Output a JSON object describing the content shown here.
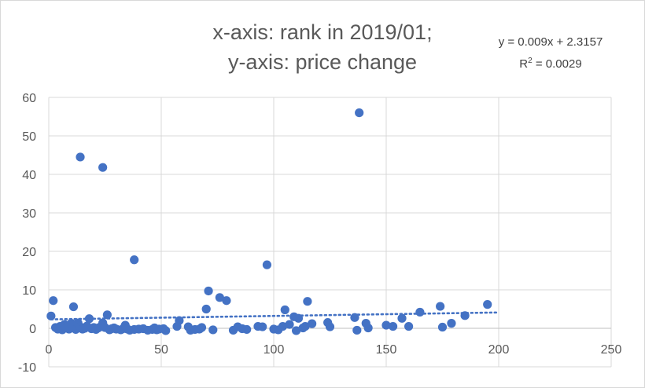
{
  "chart_data": {
    "type": "scatter",
    "title_lines": [
      "x-axis: rank in 2019/01;",
      "y-axis: price change"
    ],
    "xlim": [
      0,
      250
    ],
    "ylim": [
      -10,
      60
    ],
    "x_ticks": [
      0,
      50,
      100,
      150,
      200,
      250
    ],
    "y_ticks": [
      -10,
      0,
      10,
      20,
      30,
      40,
      50,
      60
    ],
    "grid": true,
    "marker_color": "#4472c4",
    "trendline": {
      "type": "linear",
      "slope": 0.009,
      "intercept": 2.3157,
      "x_range": [
        1,
        200
      ],
      "equation_label": "y = 0.009x + 2.3157",
      "r2_label_prefix": "R",
      "r2_label_suffix": " = 0.0029",
      "color": "#4472c4",
      "style": "dotted"
    },
    "points": [
      [
        1,
        3.2
      ],
      [
        2,
        7.2
      ],
      [
        3,
        0.2
      ],
      [
        4,
        -0.2
      ],
      [
        5,
        0.5
      ],
      [
        6,
        -0.4
      ],
      [
        7,
        1.0
      ],
      [
        8,
        0.3
      ],
      [
        9,
        -0.2
      ],
      [
        10,
        1.3
      ],
      [
        11,
        0.1
      ],
      [
        11,
        5.6
      ],
      [
        12,
        -0.3
      ],
      [
        13,
        1.4
      ],
      [
        14,
        0.4
      ],
      [
        14,
        44.5
      ],
      [
        15,
        -0.2
      ],
      [
        16,
        0.0
      ],
      [
        17,
        0.6
      ],
      [
        18,
        2.5
      ],
      [
        19,
        -0.1
      ],
      [
        20,
        0.2
      ],
      [
        21,
        -0.3
      ],
      [
        22,
        0.1
      ],
      [
        23,
        0.4
      ],
      [
        24,
        1.4
      ],
      [
        24,
        41.8
      ],
      [
        25,
        0.2
      ],
      [
        26,
        3.5
      ],
      [
        27,
        -0.4
      ],
      [
        28,
        -0.1
      ],
      [
        29,
        0.1
      ],
      [
        30,
        -0.2
      ],
      [
        32,
        -0.4
      ],
      [
        33,
        -0.1
      ],
      [
        34,
        0.8
      ],
      [
        35,
        -0.2
      ],
      [
        36,
        -0.5
      ],
      [
        38,
        17.8
      ],
      [
        38,
        -0.3
      ],
      [
        40,
        -0.2
      ],
      [
        42,
        -0.1
      ],
      [
        44,
        -0.5
      ],
      [
        46,
        -0.3
      ],
      [
        47,
        0.1
      ],
      [
        48,
        -0.4
      ],
      [
        49,
        -0.2
      ],
      [
        51,
        -0.1
      ],
      [
        52,
        -0.6
      ],
      [
        57,
        0.5
      ],
      [
        58,
        2.0
      ],
      [
        62,
        0.4
      ],
      [
        63,
        -0.5
      ],
      [
        65,
        -0.3
      ],
      [
        67,
        -0.2
      ],
      [
        68,
        0.2
      ],
      [
        70,
        5.0
      ],
      [
        71,
        9.7
      ],
      [
        73,
        -0.4
      ],
      [
        76,
        8.0
      ],
      [
        79,
        7.2
      ],
      [
        82,
        -0.5
      ],
      [
        84,
        0.4
      ],
      [
        86,
        -0.1
      ],
      [
        88,
        -0.3
      ],
      [
        93,
        0.5
      ],
      [
        95,
        0.4
      ],
      [
        97,
        16.5
      ],
      [
        100,
        -0.2
      ],
      [
        102,
        -0.4
      ],
      [
        104,
        0.5
      ],
      [
        105,
        4.8
      ],
      [
        107,
        1.0
      ],
      [
        109,
        3.0
      ],
      [
        110,
        -0.6
      ],
      [
        111,
        2.6
      ],
      [
        113,
        0.1
      ],
      [
        114,
        0.5
      ],
      [
        115,
        7.0
      ],
      [
        117,
        1.2
      ],
      [
        124,
        1.5
      ],
      [
        125,
        0.4
      ],
      [
        136,
        2.8
      ],
      [
        137,
        -0.5
      ],
      [
        138,
        56.0
      ],
      [
        141,
        1.3
      ],
      [
        142,
        0.1
      ],
      [
        150,
        0.8
      ],
      [
        153,
        0.5
      ],
      [
        157,
        2.6
      ],
      [
        160,
        0.5
      ],
      [
        165,
        4.2
      ],
      [
        174,
        5.7
      ],
      [
        175,
        0.3
      ],
      [
        179,
        1.3
      ],
      [
        185,
        3.3
      ],
      [
        195,
        6.2
      ]
    ]
  }
}
